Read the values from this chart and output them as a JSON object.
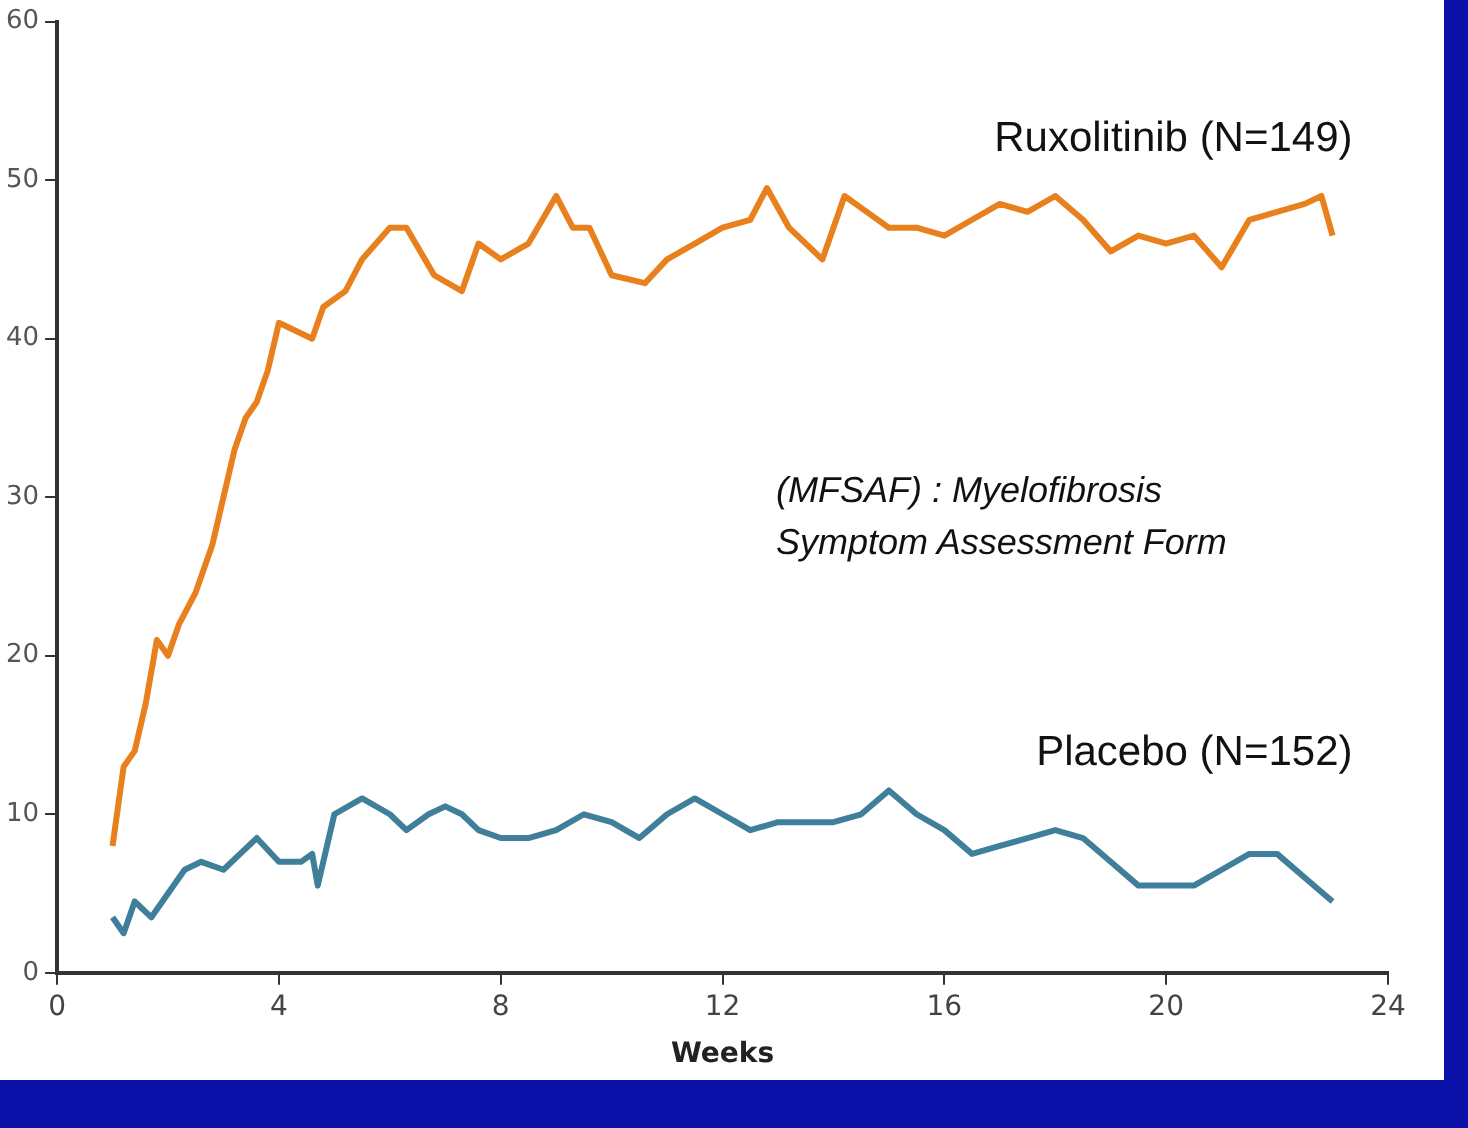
{
  "chart_data": {
    "type": "line",
    "xlabel": "Weeks",
    "xlim": [
      0,
      24
    ],
    "xticks": [
      0,
      4,
      8,
      12,
      16,
      20,
      24
    ],
    "ylim": [
      0,
      60
    ],
    "yticks": [
      0,
      10,
      20,
      30,
      40,
      50,
      60
    ],
    "grid": false,
    "legend": false,
    "marker": "none",
    "line_style": "solid",
    "annotations": [
      "(MFSAF) : Myelofibrosis Symptom  Assessment Form"
    ],
    "series": [
      {
        "name": "Ruxolitinib (N=149)",
        "color": "#e8801e",
        "x": [
          1,
          1.2,
          1.4,
          1.6,
          1.8,
          2,
          2.2,
          2.5,
          2.8,
          3,
          3.2,
          3.4,
          3.6,
          3.8,
          4,
          4.3,
          4.6,
          4.8,
          5.2,
          5.5,
          6,
          6.3,
          6.8,
          7.3,
          7.6,
          8,
          8.5,
          9,
          9.3,
          9.6,
          10,
          10.6,
          11,
          11.5,
          12,
          12.5,
          12.8,
          13.2,
          13.8,
          14.2,
          14.6,
          15,
          15.5,
          16,
          16.5,
          17,
          17.5,
          18,
          18.5,
          19,
          19.5,
          20,
          20.5,
          21,
          21.5,
          22,
          22.5,
          22.8,
          23
        ],
        "values": [
          8,
          13,
          14,
          17,
          21,
          20,
          22,
          24,
          27,
          30,
          33,
          35,
          36,
          38,
          41,
          40.5,
          40,
          42,
          43,
          45,
          47,
          47,
          44,
          43,
          46,
          45,
          46,
          49,
          47,
          47,
          44,
          43.5,
          45,
          46,
          47,
          47.5,
          49.5,
          47,
          45,
          49,
          48,
          47,
          47,
          46.5,
          47.5,
          48.5,
          48,
          49,
          47.5,
          45.5,
          46.5,
          46,
          46.5,
          44.5,
          47.5,
          48,
          48.5,
          49,
          46.5
        ]
      },
      {
        "name": "Placebo (N=152)",
        "color": "#3f7f9a",
        "x": [
          1,
          1.2,
          1.4,
          1.7,
          2,
          2.3,
          2.6,
          3,
          3.3,
          3.6,
          4,
          4.4,
          4.6,
          4.7,
          5,
          5.5,
          6,
          6.3,
          6.7,
          7,
          7.3,
          7.6,
          8,
          8.5,
          9,
          9.5,
          10,
          10.5,
          11,
          11.5,
          12,
          12.5,
          13,
          13.5,
          14,
          14.5,
          15,
          15.5,
          16,
          16.5,
          17,
          17.5,
          18,
          18.5,
          19,
          19.5,
          20,
          20.5,
          21,
          21.5,
          22,
          22.5,
          23
        ],
        "values": [
          3.5,
          2.5,
          4.5,
          3.5,
          5,
          6.5,
          7,
          6.5,
          7.5,
          8.5,
          7,
          7,
          7.5,
          5.5,
          10,
          11,
          10,
          9,
          10,
          10.5,
          10,
          9,
          8.5,
          8.5,
          9,
          10,
          9.5,
          8.5,
          10,
          11,
          10,
          9,
          9.5,
          9.5,
          9.5,
          10,
          11.5,
          10,
          9,
          7.5,
          8,
          8.5,
          9,
          8.5,
          7,
          5.5,
          5.5,
          5.5,
          6.5,
          7.5,
          7.5,
          6,
          4.5
        ]
      }
    ]
  }
}
